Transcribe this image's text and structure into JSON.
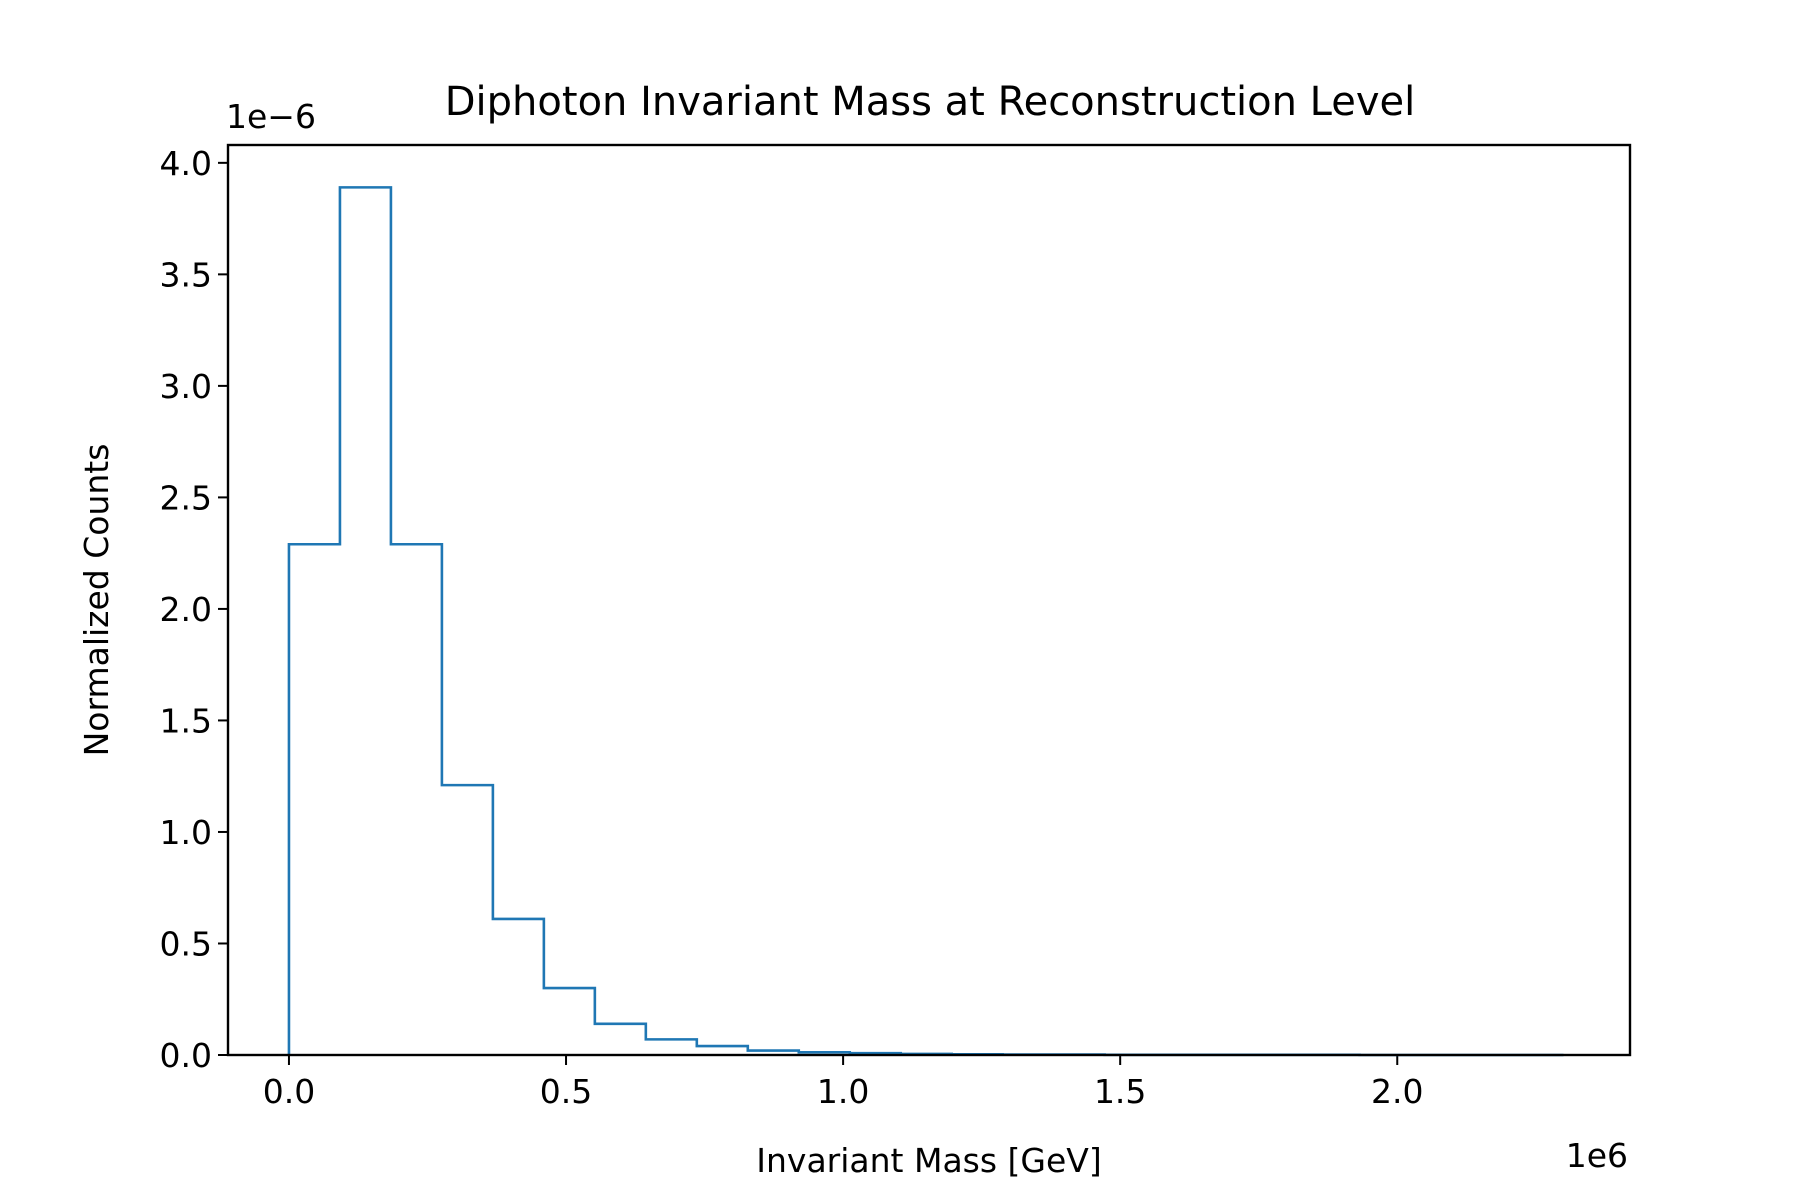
{
  "chart_data": {
    "type": "step-histogram",
    "title": "Diphoton Invariant Mass at Reconstruction Level",
    "xlabel": "Invariant Mass [GeV]",
    "ylabel": "Normalized Counts",
    "x_offset_label": "1e6",
    "y_offset_label": "1e−6",
    "xlim": [
      -0.11,
      2.42
    ],
    "ylim": [
      0,
      4.08
    ],
    "x_scale_note": "values in units of 1e6 GeV",
    "y_scale_note": "values in units of 1e-6",
    "x_ticks": [
      {
        "value": 0.0,
        "label": "0.0"
      },
      {
        "value": 0.5,
        "label": "0.5"
      },
      {
        "value": 1.0,
        "label": "1.0"
      },
      {
        "value": 1.5,
        "label": "1.5"
      },
      {
        "value": 2.0,
        "label": "2.0"
      }
    ],
    "y_ticks": [
      {
        "value": 0.0,
        "label": "0.0"
      },
      {
        "value": 0.5,
        "label": "0.5"
      },
      {
        "value": 1.0,
        "label": "1.0"
      },
      {
        "value": 1.5,
        "label": "1.5"
      },
      {
        "value": 2.0,
        "label": "2.0"
      },
      {
        "value": 2.5,
        "label": "2.5"
      },
      {
        "value": 3.0,
        "label": "3.0"
      },
      {
        "value": 3.5,
        "label": "3.5"
      },
      {
        "value": 4.0,
        "label": "4.0"
      }
    ],
    "bin_edges": [
      0.0,
      0.092,
      0.184,
      0.276,
      0.368,
      0.46,
      0.552,
      0.644,
      0.736,
      0.828,
      0.92,
      1.012,
      1.104,
      1.196,
      1.288,
      1.38,
      1.472,
      1.564,
      1.656,
      1.748,
      1.84,
      1.932,
      2.024,
      2.116,
      2.208,
      2.3
    ],
    "values": [
      2.29,
      3.89,
      2.29,
      1.21,
      0.61,
      0.3,
      0.14,
      0.07,
      0.04,
      0.02,
      0.012,
      0.008,
      0.005,
      0.003,
      0.002,
      0.002,
      0.001,
      0.001,
      0.001,
      0.001,
      0.001,
      0.0,
      0.0,
      0.0,
      0.0
    ],
    "grid": false,
    "legend": "none",
    "series_color": "#1f77b4"
  }
}
